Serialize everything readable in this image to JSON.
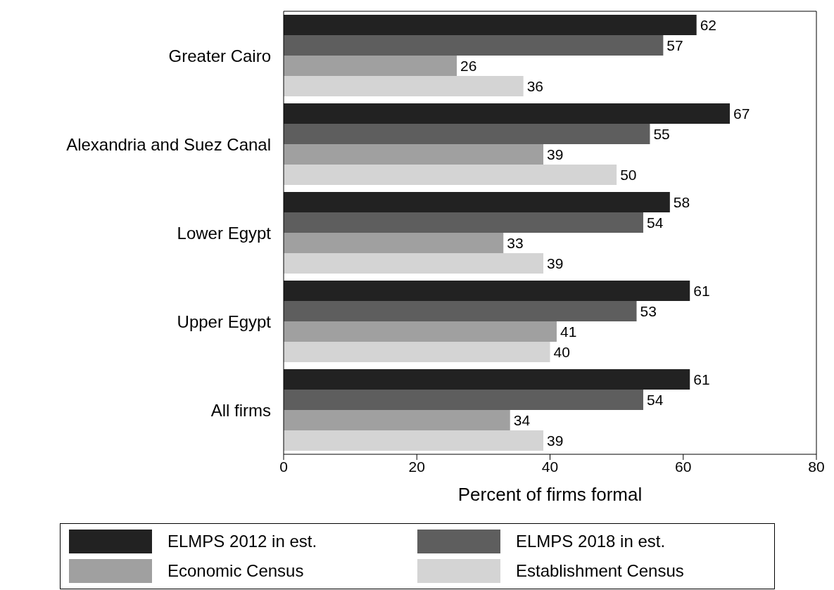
{
  "chart_data": {
    "type": "bar",
    "orientation": "horizontal",
    "xlabel": "Percent of firms formal",
    "categories": [
      "Greater Cairo",
      "Alexandria and Suez Canal",
      "Lower Egypt",
      "Upper Egypt",
      "All firms"
    ],
    "series": [
      {
        "name": "ELMPS 2012 in est.",
        "color": "#222222",
        "values": [
          62,
          67,
          58,
          61,
          61
        ]
      },
      {
        "name": "ELMPS 2018 in est.",
        "color": "#5e5e5e",
        "values": [
          57,
          55,
          54,
          53,
          54
        ]
      },
      {
        "name": "Economic Census",
        "color": "#a0a0a0",
        "values": [
          26,
          39,
          33,
          41,
          34
        ]
      },
      {
        "name": "Establishment Census",
        "color": "#d4d4d4",
        "values": [
          36,
          50,
          39,
          40,
          39
        ]
      }
    ],
    "xlim": [
      0,
      80
    ],
    "xticks": [
      0,
      20,
      40,
      60,
      80
    ],
    "data_labels": true,
    "grid": false,
    "legend": "bottom"
  }
}
